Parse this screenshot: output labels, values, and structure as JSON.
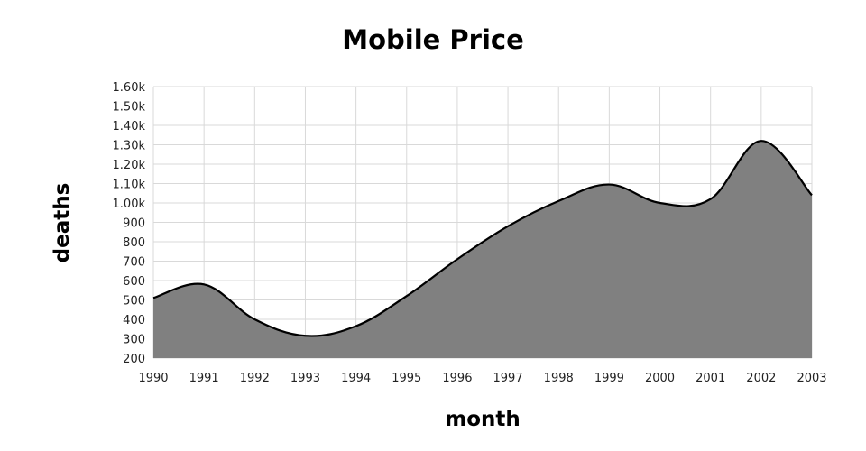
{
  "chart_data": {
    "type": "area",
    "title": "Mobile Price",
    "xlabel": "month",
    "ylabel": "deaths",
    "x": [
      1990,
      1991,
      1992,
      1993,
      1994,
      1995,
      1996,
      1997,
      1998,
      1999,
      2000,
      2001,
      2002,
      2003
    ],
    "x_tick_labels": [
      "1990",
      "1991",
      "1992",
      "1993",
      "1994",
      "1995",
      "1996",
      "1997",
      "1998",
      "1999",
      "2000",
      "2001",
      "2002",
      "2003"
    ],
    "series": [
      {
        "values": [
          510,
          580,
          400,
          315,
          365,
          520,
          710,
          880,
          1010,
          1095,
          1000,
          1020,
          1320,
          1040
        ]
      }
    ],
    "ylim": [
      200,
      1600
    ],
    "y_ticks": [
      200,
      300,
      400,
      500,
      600,
      700,
      800,
      900,
      1000,
      1100,
      1200,
      1300,
      1400,
      1500,
      1600
    ],
    "y_tick_labels": [
      "200",
      "300",
      "400",
      "500",
      "600",
      "700",
      "800",
      "900",
      "1.00k",
      "1.10k",
      "1.20k",
      "1.30k",
      "1.40k",
      "1.50k",
      "1.60k"
    ],
    "grid": true,
    "legend": "none",
    "colors": {
      "fill": "#808080",
      "line": "#000000",
      "grid": "#d9d9d9"
    }
  }
}
